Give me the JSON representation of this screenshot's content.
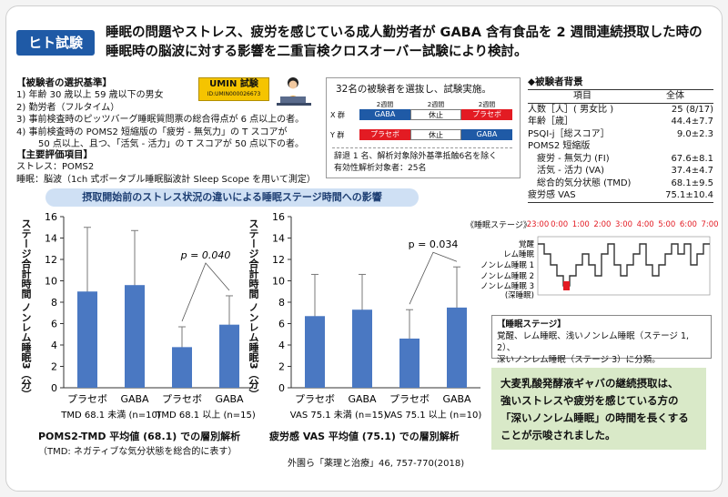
{
  "badge": "ヒト試験",
  "headline": {
    "line1": "睡眠の問題やストレス、疲労を感じている成人勤労者が GABA 含有食品を 2 週間連続摂取した時の",
    "line2": "睡眠時の脳波に対する影響を二重盲検クロスオーバー試験により検討。"
  },
  "criteria": {
    "title": "【被験者の選択基準】",
    "items": [
      "1) 年齢 30 歳以上 59 歳以下の男女",
      "2) 勤労者（フルタイム）",
      "3) 事前検査時のピッツバーグ睡眠質問票の総合得点が 6 点以上の者。",
      "4) 事前検査時の POMS2 短縮版の「疲労 - 無気力」の T スコアが",
      "50 点以上、且つ、「活気 - 活力」の T スコアが 50 点以下の者。"
    ]
  },
  "umin": {
    "title": "UMIN 試験",
    "id": "ID:UMIN000026673"
  },
  "evaluation": {
    "title": "【主要評価項目】",
    "stress": "ストレス：POMS2",
    "sleep": "睡眠：脳波（1ch 式ポータブル睡眠脳波計 Sleep Scope を用いて測定）"
  },
  "design": {
    "title": "32名の被験者を選抜し、試験実施。",
    "period_label": "2週間",
    "groups": [
      {
        "name": "X 群",
        "cells": [
          "GABA",
          "休止",
          "プラセボ"
        ]
      },
      {
        "name": "Y 群",
        "cells": [
          "プラセボ",
          "休止",
          "GABA"
        ]
      }
    ],
    "note1": "辞退 1 名、解析対象除外基準抵触6名を除く",
    "note2": "有効性解析対象者：25名"
  },
  "background": {
    "title": "◆被験者背景",
    "col_item": "項目",
    "col_all": "全体",
    "rows": [
      {
        "label": "人数［人］( 男女比 )",
        "value": "25 (8/17)"
      },
      {
        "label": "年齢［歳］",
        "value": "44.4±7.7"
      },
      {
        "label": "PSQI-j［総スコア］",
        "value": "9.0±2.3"
      },
      {
        "label": "POMS2 短縮版",
        "value": ""
      },
      {
        "label": "疲労 - 無気力 (FI)",
        "value": "67.6±8.1"
      },
      {
        "label": "活気 - 活力 (VA)",
        "value": "37.4±4.7"
      },
      {
        "label": "総合的気分状態 (TMD)",
        "value": "68.1±9.5"
      },
      {
        "label": "疲労感 VAS",
        "value": "75.1±10.4"
      }
    ]
  },
  "section_pill": "摂取開始前のストレス状況の違いによる睡眠ステージ時間への影響",
  "chart_data": [
    {
      "type": "bar",
      "ylabel": "ステージ合計時間 ノンレム睡眠3（分）",
      "ylim": [
        0,
        16
      ],
      "yticks": [
        "0",
        "2",
        "4",
        "6",
        "8",
        "10",
        "12",
        "14",
        "16"
      ],
      "categories": [
        "プラセボ",
        "GABA",
        "プラセボ",
        "GABA"
      ],
      "values": [
        9.0,
        9.6,
        3.8,
        5.9
      ],
      "error_upper": [
        15.0,
        14.7,
        5.7,
        8.6
      ],
      "error_lower": [
        3.0,
        4.5,
        1.9,
        3.2
      ],
      "group_labels": [
        "TMD 68.1 未満 (n=10)",
        "TMD 68.1 以上 (n=15)"
      ],
      "p_label": "p = 0.040",
      "caption1": "POMS2-TMD 平均値 (68.1) での層別解析",
      "caption2": "（TMD: ネガティブな気分状態を総合的に表す）"
    },
    {
      "type": "bar",
      "ylabel": "ステージ合計時間 ノンレム睡眠3（分）",
      "ylim": [
        0,
        16
      ],
      "yticks": [
        "0",
        "2",
        "4",
        "6",
        "8",
        "10",
        "12",
        "14",
        "16"
      ],
      "categories": [
        "プラセボ",
        "GABA",
        "プラセボ",
        "GABA"
      ],
      "values": [
        6.7,
        7.3,
        4.6,
        7.5
      ],
      "error_upper": [
        10.6,
        10.6,
        7.3,
        11.3
      ],
      "error_lower": [
        2.8,
        4.0,
        1.9,
        3.7
      ],
      "group_labels": [
        "VAS 75.1 未満 (n=15)",
        "VAS 75.1 以上 (n=10)"
      ],
      "p_label": "p = 0.034",
      "caption1": "疲労感 VAS 平均値 (75.1) での層別解析"
    }
  ],
  "hypnogram": {
    "title": "《睡眠ステージ》",
    "times": [
      "23:00",
      "0:00",
      "1:00",
      "2:00",
      "3:00",
      "4:00",
      "5:00",
      "6:00",
      "7:00"
    ],
    "levels": [
      "覚醒",
      "レム睡眠",
      "ノンレム睡眠 1",
      "ノンレム睡眠 2",
      "ノンレム睡眠 3",
      "(深睡眠)"
    ],
    "time_color": "#e31b23",
    "highlight_color": "#e31b23"
  },
  "stage_box": {
    "title": "【睡眠ステージ】",
    "line1": "覚醒、レム睡眠、浅いノンレム睡眠（ステージ 1, 2）、",
    "line2": "深いノンレム睡眠（ステージ 3）に分類。"
  },
  "conclusion": {
    "line1": "大麦乳酸発酵液ギャバの継続摂取は、",
    "line2": "強いストレスや疲労を感じている方の",
    "line3": "「深いノンレム睡眠」の時間を長くする",
    "line4": "ことが示唆されました。"
  },
  "citation": "外園ら「薬理と治療」46, 757-770(2018)"
}
